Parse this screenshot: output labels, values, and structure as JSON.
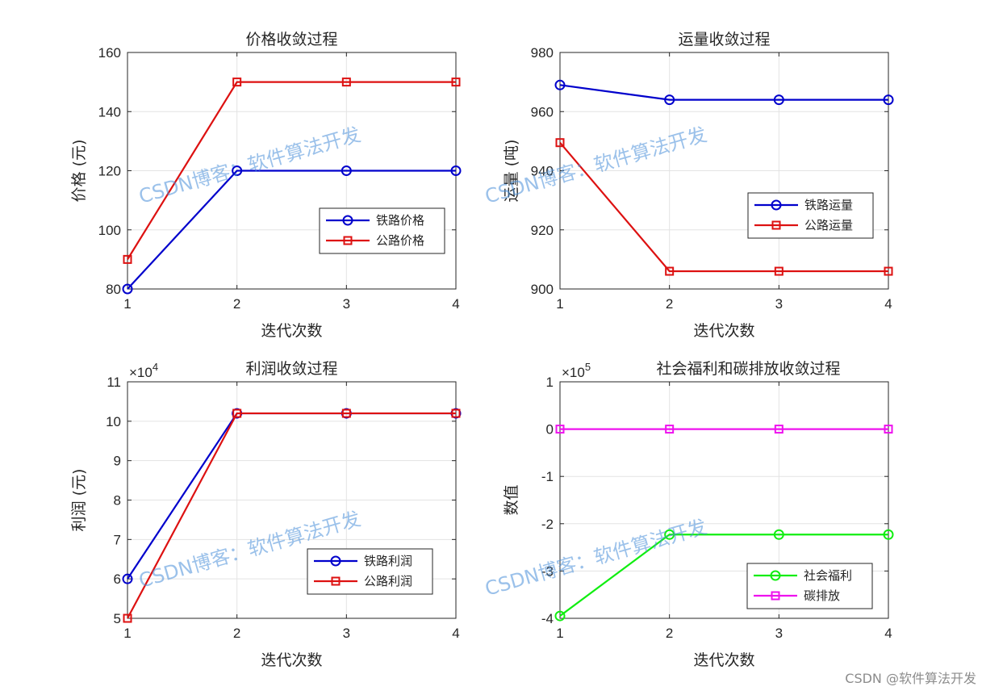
{
  "watermark": "CSDN博客：软件算法开发",
  "credit": "CSDN @软件算法开发",
  "chart_data": [
    {
      "type": "line",
      "title": "价格收敛过程",
      "xlabel": "迭代次数",
      "ylabel": "价格 (元)",
      "x": [
        1,
        2,
        3,
        4
      ],
      "xlim": [
        1,
        4
      ],
      "ylim": [
        80,
        160
      ],
      "yticks": [
        80,
        100,
        120,
        140,
        160
      ],
      "exponent": "",
      "grid": true,
      "legend_position": "right-middle",
      "series": [
        {
          "name": "铁路价格",
          "values": [
            80,
            120,
            120,
            120
          ],
          "color": "#0000cc",
          "marker": "circle"
        },
        {
          "name": "公路价格",
          "values": [
            90,
            150,
            150,
            150
          ],
          "color": "#dd1111",
          "marker": "square"
        }
      ]
    },
    {
      "type": "line",
      "title": "运量收敛过程",
      "xlabel": "迭代次数",
      "ylabel": "运量 (吨)",
      "x": [
        1,
        2,
        3,
        4
      ],
      "xlim": [
        1,
        4
      ],
      "ylim": [
        900,
        980
      ],
      "yticks": [
        900,
        920,
        940,
        960,
        980
      ],
      "exponent": "",
      "grid": true,
      "legend_position": "right-middle",
      "series": [
        {
          "name": "铁路运量",
          "values": [
            969,
            964,
            964,
            964
          ],
          "color": "#0000cc",
          "marker": "circle"
        },
        {
          "name": "公路运量",
          "values": [
            949.5,
            906,
            906,
            906
          ],
          "color": "#dd1111",
          "marker": "square"
        }
      ]
    },
    {
      "type": "line",
      "title": "利润收敛过程",
      "xlabel": "迭代次数",
      "ylabel": "利润 (元)",
      "x": [
        1,
        2,
        3,
        4
      ],
      "xlim": [
        1,
        4
      ],
      "ylim": [
        5,
        11
      ],
      "yticks": [
        5,
        6,
        7,
        8,
        9,
        10,
        11
      ],
      "exponent": "4",
      "grid": true,
      "legend_position": "bottom-right",
      "series": [
        {
          "name": "铁路利润",
          "values": [
            6,
            10.2,
            10.2,
            10.2
          ],
          "color": "#0000cc",
          "marker": "circle"
        },
        {
          "name": "公路利润",
          "values": [
            5,
            10.2,
            10.2,
            10.2
          ],
          "color": "#dd1111",
          "marker": "square"
        }
      ]
    },
    {
      "type": "line",
      "title": "社会福利和碳排放收敛过程",
      "xlabel": "迭代次数",
      "ylabel": "数值",
      "x": [
        1,
        2,
        3,
        4
      ],
      "xlim": [
        1,
        4
      ],
      "ylim": [
        -4,
        1
      ],
      "yticks": [
        -4,
        -3,
        -2,
        -1,
        0,
        1
      ],
      "exponent": "5",
      "grid": true,
      "legend_position": "bottom-right",
      "series": [
        {
          "name": "社会福利",
          "values": [
            -3.95,
            -2.23,
            -2.23,
            -2.23
          ],
          "color": "#11ee11",
          "marker": "circle"
        },
        {
          "name": "碳排放",
          "values": [
            0,
            0,
            0,
            0
          ],
          "color": "#ee11ee",
          "marker": "square"
        }
      ]
    }
  ]
}
